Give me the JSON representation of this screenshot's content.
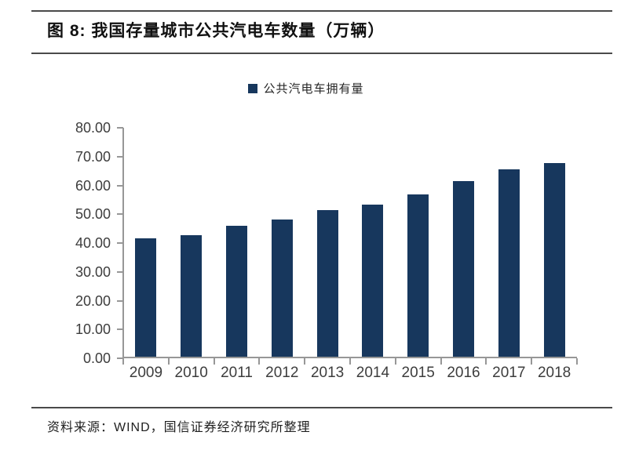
{
  "header": {
    "title": "图 8: 我国存量城市公共汽电车数量（万辆）"
  },
  "legend": {
    "label": "公共汽电车拥有量"
  },
  "footer": {
    "source": "资料来源：WIND，国信证券经济研究所整理"
  },
  "colors": {
    "bar": "#17375D",
    "axis": "#979797",
    "rule": "#4A4A4A"
  },
  "chart_data": {
    "type": "bar",
    "title": "图 8: 我国存量城市公共汽电车数量（万辆）",
    "categories": [
      "2009",
      "2010",
      "2011",
      "2012",
      "2013",
      "2014",
      "2015",
      "2016",
      "2017",
      "2018"
    ],
    "series": [
      {
        "name": "公共汽电车拥有量",
        "values": [
          41.2,
          42.1,
          45.4,
          47.6,
          51.0,
          52.9,
          56.2,
          60.9,
          65.1,
          67.3
        ]
      }
    ],
    "xlabel": "",
    "ylabel": "",
    "ylim": [
      0,
      80
    ],
    "y_ticks": [
      "80.00",
      "70.00",
      "60.00",
      "50.00",
      "40.00",
      "30.00",
      "20.00",
      "10.00",
      "0.00"
    ],
    "grid": false,
    "legend_position": "top-center",
    "bar_color": "#17375D"
  }
}
